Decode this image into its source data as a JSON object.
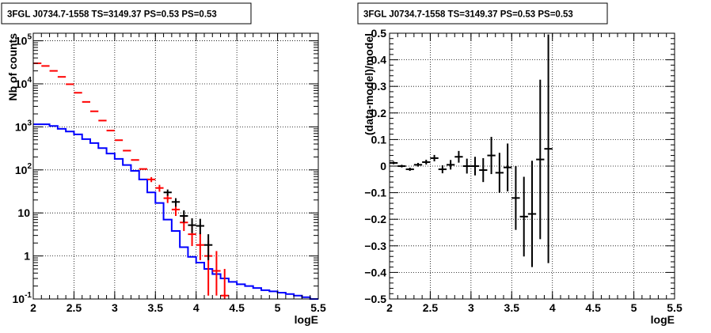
{
  "chart_data": [
    {
      "type": "line",
      "title": "3FGL J0734.7-1558 TS=3149.37 PS=0.53 PS=0.53",
      "xlabel": "logE",
      "ylabel": "Nb of counts",
      "xlim": [
        2,
        5.5
      ],
      "ylim": [
        0.1,
        150000
      ],
      "yscale": "log",
      "grid": true,
      "x_ticks": [
        "2",
        "2.5",
        "3",
        "3.5",
        "4",
        "4.5",
        "5",
        "5.5"
      ],
      "y_ticks": [
        {
          "base": "10",
          "exp": "-1"
        },
        {
          "base": "1",
          "exp": ""
        },
        {
          "base": "10",
          "exp": ""
        },
        {
          "base": "10",
          "exp": "2"
        },
        {
          "base": "10",
          "exp": "3"
        },
        {
          "base": "10",
          "exp": "4"
        },
        {
          "base": "10",
          "exp": "5"
        }
      ],
      "bin_edges": [
        2.0,
        2.1,
        2.2,
        2.3,
        2.4,
        2.5,
        2.6,
        2.7,
        2.8,
        2.9,
        3.0,
        3.1,
        3.2,
        3.3,
        3.4,
        3.5,
        3.6,
        3.7,
        3.8,
        3.9,
        4.0,
        4.1,
        4.2,
        4.3,
        4.4,
        4.5,
        4.6,
        4.7,
        4.8,
        4.9,
        5.0,
        5.1,
        5.2,
        5.3,
        5.4,
        5.5
      ],
      "series": [
        {
          "color": "#0000ff",
          "style": "step",
          "values": [
            1150,
            1150,
            1050,
            900,
            780,
            670,
            520,
            420,
            320,
            240,
            180,
            130,
            95,
            60,
            30,
            17,
            7,
            3.8,
            1.6,
            0.95,
            0.7,
            0.5,
            0.38,
            0.3,
            0.25,
            0.22,
            0.2,
            0.18,
            0.16,
            0.15,
            0.14,
            0.13,
            0.12,
            0.11,
            0.1
          ]
        },
        {
          "color": "#ff0000",
          "style": "errorbar",
          "points": [
            {
              "x": 2.05,
              "y": 30000
            },
            {
              "x": 2.15,
              "y": 26000
            },
            {
              "x": 2.25,
              "y": 20000
            },
            {
              "x": 2.35,
              "y": 14500
            },
            {
              "x": 2.45,
              "y": 9800
            },
            {
              "x": 2.55,
              "y": 6200
            },
            {
              "x": 2.65,
              "y": 3800
            },
            {
              "x": 2.75,
              "y": 2300
            },
            {
              "x": 2.85,
              "y": 1400
            },
            {
              "x": 2.95,
              "y": 820
            },
            {
              "x": 3.05,
              "y": 490
            },
            {
              "x": 3.15,
              "y": 280
            },
            {
              "x": 3.25,
              "y": 170
            },
            {
              "x": 3.35,
              "y": 105
            },
            {
              "x": 3.45,
              "y": 60,
              "lo": 52,
              "hi": 68
            },
            {
              "x": 3.55,
              "y": 38,
              "lo": 31,
              "hi": 45
            },
            {
              "x": 3.65,
              "y": 22,
              "lo": 17,
              "hi": 27
            },
            {
              "x": 3.75,
              "y": 12,
              "lo": 8.5,
              "hi": 16
            },
            {
              "x": 3.85,
              "y": 6,
              "lo": 3.8,
              "hi": 9
            },
            {
              "x": 3.95,
              "y": 3.2,
              "lo": 1.7,
              "hi": 5.5
            },
            {
              "x": 4.05,
              "y": 1.8,
              "lo": 0.8,
              "hi": 3.5
            },
            {
              "x": 4.15,
              "y": 1.0,
              "lo": 0.12,
              "hi": 2.3
            },
            {
              "x": 4.25,
              "y": 0.45,
              "lo": 0.12,
              "hi": 1.3
            },
            {
              "x": 4.35,
              "y": 0.12,
              "lo": 0.1,
              "hi": 0.5
            }
          ]
        },
        {
          "color": "#000000",
          "style": "errorbar",
          "points": [
            {
              "x": 3.65,
              "y": 30,
              "lo": 25,
              "hi": 35
            },
            {
              "x": 3.75,
              "y": 18,
              "lo": 14,
              "hi": 22
            },
            {
              "x": 3.85,
              "y": 8.5,
              "lo": 6,
              "hi": 11.5
            },
            {
              "x": 3.95,
              "y": 5.2,
              "lo": 3.4,
              "hi": 7.5
            },
            {
              "x": 4.05,
              "y": 5.0,
              "lo": 3.2,
              "hi": 7.3
            },
            {
              "x": 4.15,
              "y": 1.8,
              "lo": 0.8,
              "hi": 3.2
            }
          ]
        }
      ]
    },
    {
      "type": "scatter",
      "title": "3FGL J0734.7-1558 TS=3149.37 PS=0.53 PS=0.53",
      "xlabel": "logE",
      "ylabel": "(data-model)/model",
      "xlim": [
        2,
        5.5
      ],
      "ylim": [
        -0.5,
        0.5
      ],
      "grid": true,
      "x_ticks": [
        "2",
        "2.5",
        "3",
        "3.5",
        "4",
        "4.5",
        "5",
        "5.5"
      ],
      "y_ticks": [
        "−0.5",
        "−0.4",
        "−0.3",
        "−0.2",
        "−0.1",
        "0",
        "0.1",
        "0.2",
        "0.3",
        "0.4",
        "0.5"
      ],
      "series": [
        {
          "color": "#000000",
          "style": "errorbar",
          "points": [
            {
              "x": 2.05,
              "y": 0.012,
              "err": 0.005
            },
            {
              "x": 2.15,
              "y": 0.0,
              "err": 0.005
            },
            {
              "x": 2.25,
              "y": -0.012,
              "err": 0.006
            },
            {
              "x": 2.35,
              "y": 0.005,
              "err": 0.007
            },
            {
              "x": 2.45,
              "y": 0.015,
              "err": 0.009
            },
            {
              "x": 2.55,
              "y": 0.03,
              "err": 0.012
            },
            {
              "x": 2.65,
              "y": -0.012,
              "err": 0.015
            },
            {
              "x": 2.75,
              "y": 0.005,
              "err": 0.018
            },
            {
              "x": 2.85,
              "y": 0.035,
              "err": 0.022
            },
            {
              "x": 2.95,
              "y": 0.0,
              "err": 0.028
            },
            {
              "x": 3.05,
              "y": 0.0,
              "err": 0.035
            },
            {
              "x": 3.15,
              "y": -0.015,
              "err": 0.045
            },
            {
              "x": 3.25,
              "y": 0.04,
              "err": 0.07
            },
            {
              "x": 3.35,
              "y": -0.025,
              "err": 0.075
            },
            {
              "x": 3.45,
              "y": -0.005,
              "err": 0.09
            },
            {
              "x": 3.55,
              "y": -0.12,
              "err": 0.12
            },
            {
              "x": 3.65,
              "y": -0.19,
              "err": 0.15
            },
            {
              "x": 3.75,
              "y": -0.18,
              "err": 0.2
            },
            {
              "x": 3.85,
              "y": 0.025,
              "err": 0.3
            },
            {
              "x": 3.95,
              "y": 0.065,
              "err": 0.43
            }
          ]
        }
      ]
    }
  ]
}
